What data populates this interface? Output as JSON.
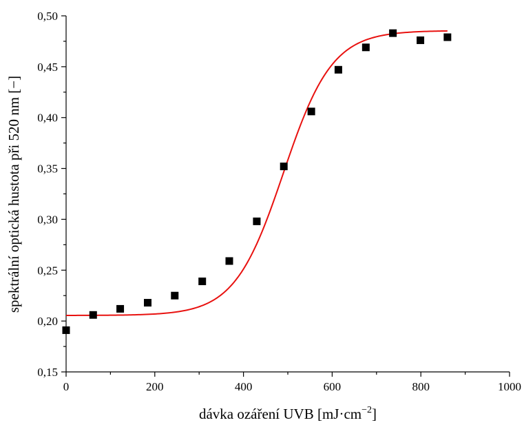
{
  "chart_data": {
    "type": "scatter",
    "title": "",
    "xlabel": "dávka ozáření UVB [mJ·cm",
    "xlabel_sup": "−2",
    "xlabel_end": "]",
    "ylabel": "spektrální optická hustota při 520 nm [−]",
    "xlim": [
      0,
      1000
    ],
    "ylim": [
      0.15,
      0.5
    ],
    "x_ticks": [
      0,
      200,
      400,
      600,
      800,
      1000
    ],
    "x_tick_labels": [
      "0",
      "200",
      "400",
      "600",
      "800",
      "1000"
    ],
    "y_ticks": [
      0.15,
      0.2,
      0.25,
      0.3,
      0.35,
      0.4,
      0.45,
      0.5
    ],
    "y_tick_labels": [
      "0,15",
      "0,20",
      "0,25",
      "0,30",
      "0,35",
      "0,40",
      "0,45",
      "0,50"
    ],
    "grid": false,
    "series": [
      {
        "kind": "points",
        "marker": "square",
        "color": "#000000",
        "x": [
          0,
          61,
          122,
          184,
          245,
          307,
          368,
          430,
          491,
          553,
          614,
          676,
          737,
          799,
          860
        ],
        "y": [
          0.191,
          0.206,
          0.212,
          0.218,
          0.225,
          0.239,
          0.259,
          0.298,
          0.352,
          0.406,
          0.447,
          0.469,
          0.483,
          0.476,
          0.479
        ]
      },
      {
        "kind": "fit",
        "color": "#e8110f",
        "model": "boltzmann",
        "A1": 0.2055,
        "A2": 0.4855,
        "x0": 490,
        "dx": 55,
        "x_range": [
          0,
          860
        ]
      }
    ]
  }
}
